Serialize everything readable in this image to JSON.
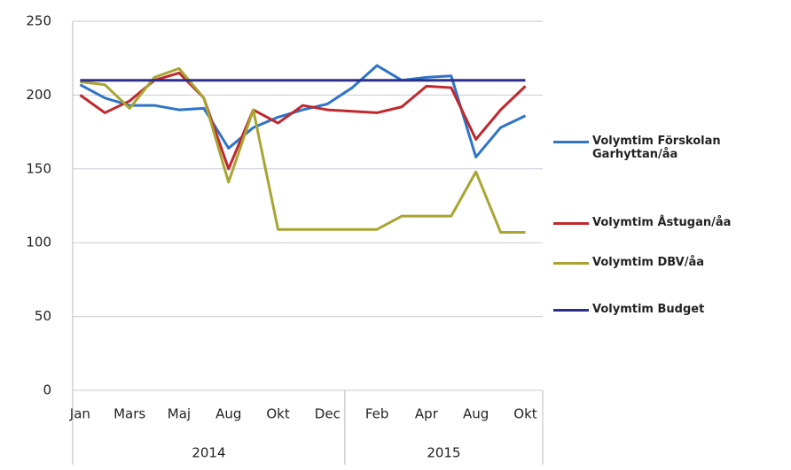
{
  "chart_data": {
    "type": "line",
    "categories": [
      "Jan",
      null,
      "Mars",
      null,
      "Maj",
      null,
      "Aug",
      null,
      "Okt",
      null,
      "Dec",
      null,
      "Feb",
      null,
      "Apr",
      null,
      "Aug",
      null,
      "Okt"
    ],
    "year_labels": [
      "2014",
      "2015"
    ],
    "series": [
      {
        "name": "Volymtim Förskolan Garhyttan/åa",
        "color": "#2f74c6",
        "values": [
          207,
          198,
          193,
          193,
          190,
          191,
          164,
          178,
          185,
          190,
          194,
          205,
          220,
          210,
          212,
          213,
          158,
          178,
          186
        ]
      },
      {
        "name": "Volymtim Åstugan/åa",
        "color": "#c0282d",
        "values": [
          200,
          188,
          196,
          210,
          215,
          198,
          150,
          190,
          181,
          193,
          190,
          189,
          188,
          192,
          206,
          205,
          170,
          190,
          206
        ]
      },
      {
        "name": "Volymtim DBV/åa",
        "color": "#a8a532",
        "values": [
          209,
          207,
          191,
          212,
          218,
          198,
          141,
          190,
          109,
          109,
          109,
          109,
          109,
          118,
          118,
          118,
          148,
          107,
          107
        ]
      },
      {
        "name": "Volymtim Budget",
        "color": "#2b2f8a",
        "values": [
          210,
          210,
          210,
          210,
          210,
          210,
          210,
          210,
          210,
          210,
          210,
          210,
          210,
          210,
          210,
          210,
          210,
          210,
          210
        ]
      }
    ],
    "ylim": [
      0,
      250
    ],
    "yticks": [
      0,
      50,
      100,
      150,
      200,
      250
    ],
    "grid": true
  }
}
